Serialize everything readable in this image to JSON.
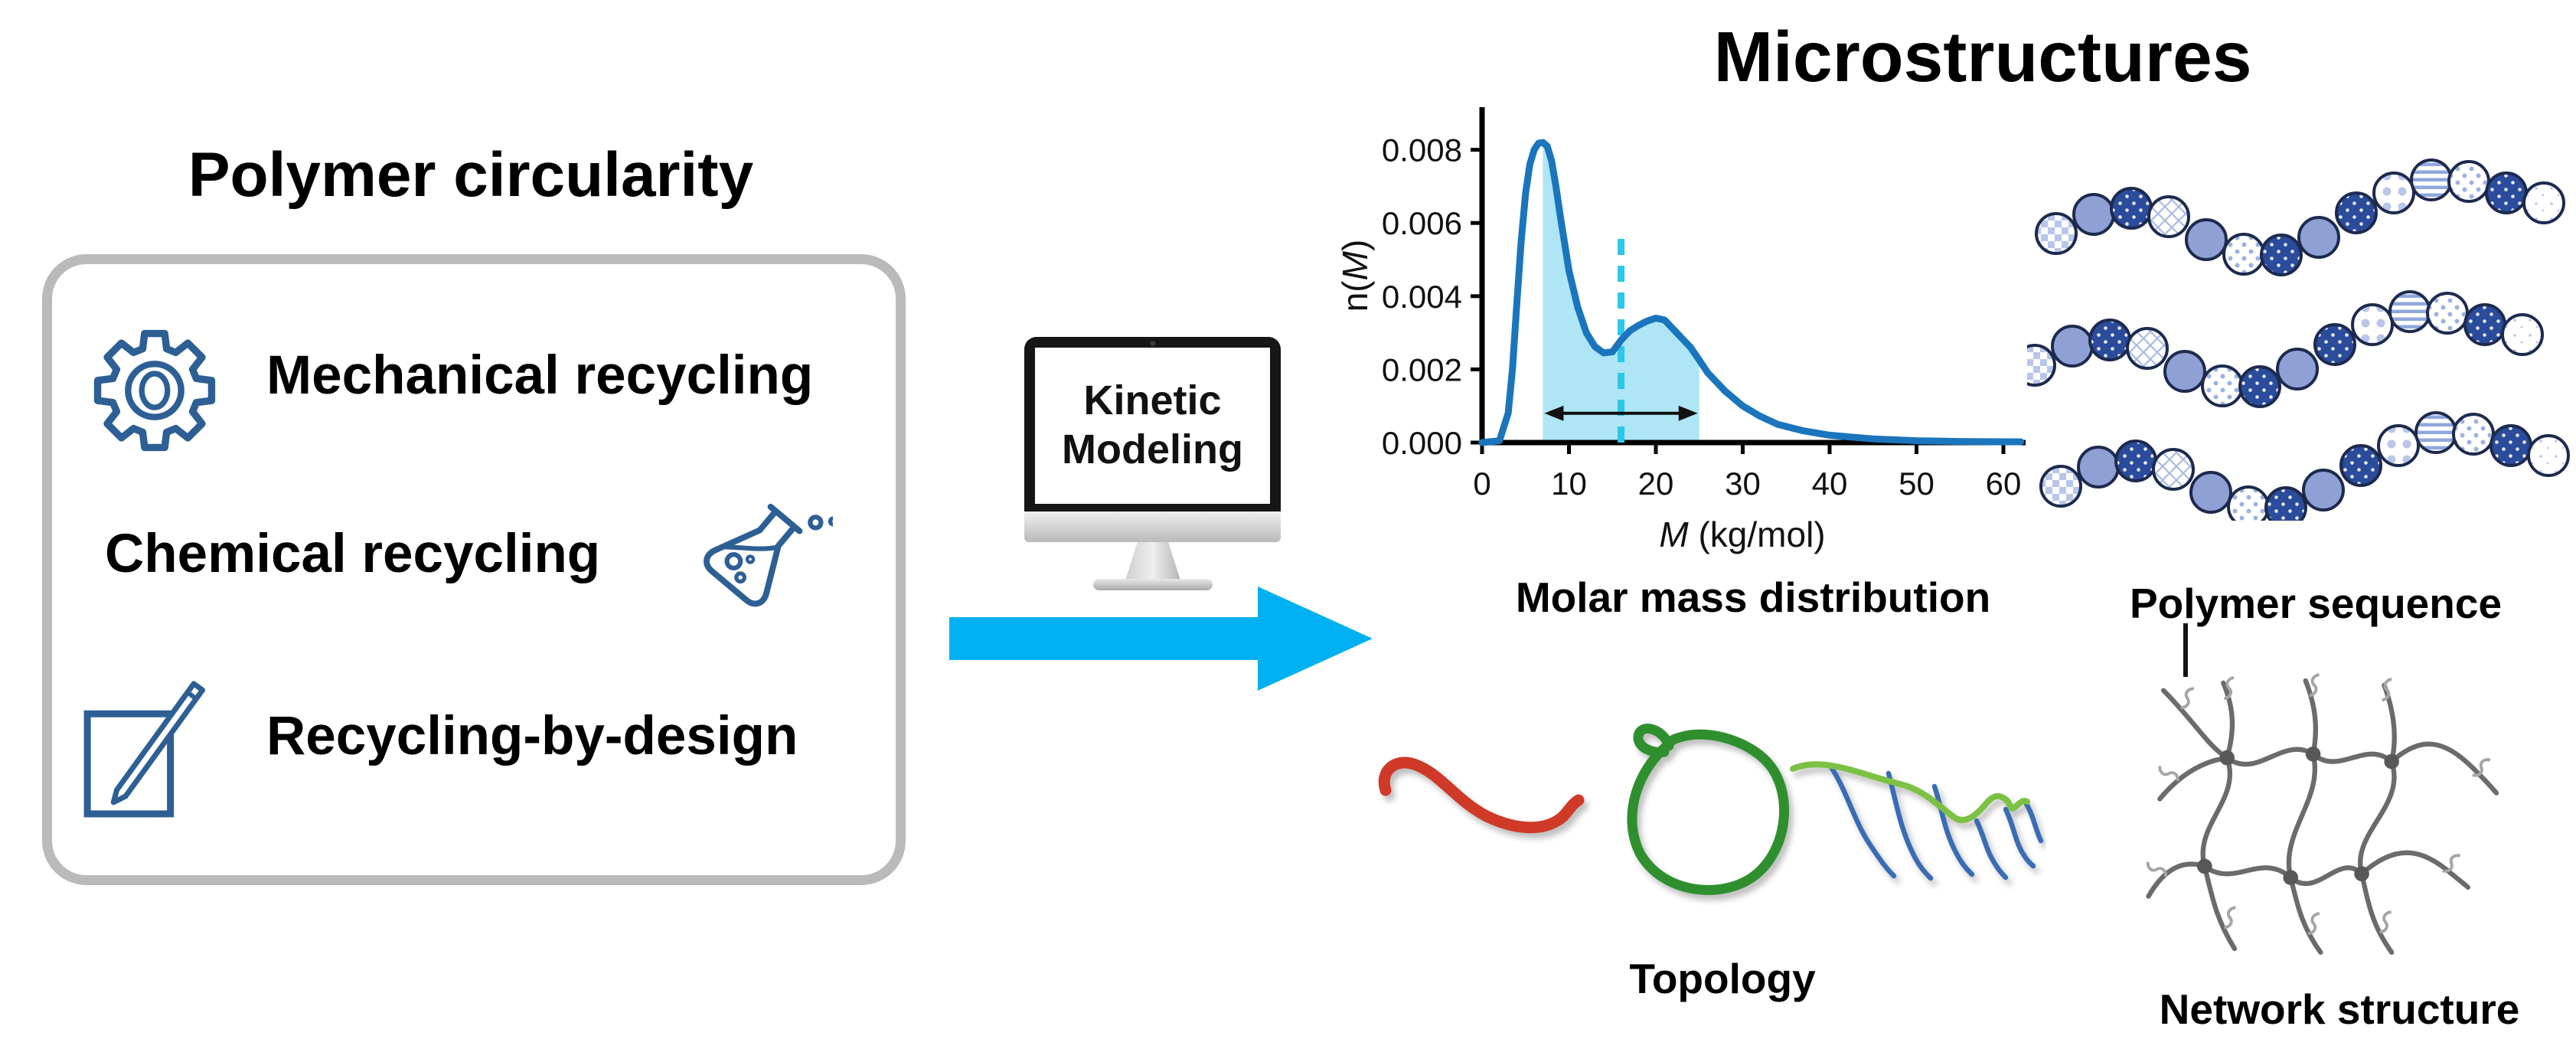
{
  "left_panel": {
    "title": "Polymer circularity",
    "border_color": "#bababa",
    "icon_color": "#2e5f94",
    "items": [
      {
        "icon": "gear-icon",
        "label": "Mechanical recycling"
      },
      {
        "icon": "flask-icon",
        "label": "Chemical recycling"
      },
      {
        "icon": "notepad-pencil-icon",
        "label": "Recycling-by-design"
      }
    ]
  },
  "center": {
    "monitor_screen_line1": "Kinetic",
    "monitor_screen_line2": "Modeling",
    "arrow_color": "#00b0f0"
  },
  "right_panel": {
    "title": "Microstructures",
    "captions": {
      "molar_mass": "Molar mass distribution",
      "sequence": "Polymer sequence",
      "topology": "Topology",
      "network": "Network structure"
    }
  },
  "chart_data": {
    "type": "area",
    "title": "Molar mass distribution",
    "xlabel": "M (kg/mol)",
    "xlabel_italic": "M",
    "xlabel_rest": " (kg/mol)",
    "ylabel": "n(M)",
    "ylabel_pre": "n(",
    "ylabel_italic": "M",
    "ylabel_post": ")",
    "xlim": [
      0,
      62
    ],
    "ylim": [
      0,
      0.0092
    ],
    "xticks": [
      0,
      10,
      20,
      30,
      40,
      50,
      60
    ],
    "yticks": [
      0.0,
      0.002,
      0.004,
      0.006,
      0.008
    ],
    "ytick_decimals": 3,
    "grid": false,
    "legend": "none",
    "curve_color": "#1b75bc",
    "series": [
      {
        "name": "n(M)",
        "points": [
          [
            0,
            0
          ],
          [
            2,
            5e-05
          ],
          [
            3,
            0.0008
          ],
          [
            3.5,
            0.002
          ],
          [
            4,
            0.0038
          ],
          [
            4.5,
            0.0055
          ],
          [
            5,
            0.0068
          ],
          [
            5.5,
            0.0076
          ],
          [
            6,
            0.008
          ],
          [
            6.5,
            0.00818
          ],
          [
            7,
            0.0082
          ],
          [
            7.5,
            0.0081
          ],
          [
            8,
            0.0077
          ],
          [
            8.5,
            0.007
          ],
          [
            9,
            0.0062
          ],
          [
            10,
            0.0047
          ],
          [
            11,
            0.0037
          ],
          [
            12,
            0.003
          ],
          [
            13,
            0.00262
          ],
          [
            14,
            0.00245
          ],
          [
            15,
            0.00248
          ],
          [
            16,
            0.0028
          ],
          [
            17,
            0.00305
          ],
          [
            18,
            0.0032
          ],
          [
            19,
            0.00332
          ],
          [
            20,
            0.0034
          ],
          [
            21,
            0.00335
          ],
          [
            22,
            0.0031
          ],
          [
            23,
            0.00285
          ],
          [
            24,
            0.0026
          ],
          [
            25,
            0.00225
          ],
          [
            26,
            0.0019
          ],
          [
            28,
            0.0014
          ],
          [
            30,
            0.001
          ],
          [
            32,
            0.00072
          ],
          [
            34,
            0.0005
          ],
          [
            37,
            0.00032
          ],
          [
            40,
            0.0002
          ],
          [
            45,
            0.0001
          ],
          [
            50,
            5e-05
          ],
          [
            55,
            3e-05
          ],
          [
            60,
            2e-05
          ],
          [
            62,
            2e-05
          ]
        ]
      }
    ],
    "shaded_region": {
      "x_start": 7,
      "x_end": 25,
      "fill": "#aee6f5"
    },
    "dashed_line": {
      "x": 16,
      "y_top": 0.0057,
      "color": "#2ec6ea"
    },
    "width_arrow": {
      "x_start": 7,
      "x_end": 25,
      "y": 0.0008,
      "color": "#111111"
    }
  },
  "illustrations": {
    "sequence_colors": {
      "solid": "#8fa0d4",
      "dark": "#2b4b9b",
      "outline": "#1d2a4e"
    },
    "topology_colors": {
      "linear": "#cf3a28",
      "ring": "#2f8f2f",
      "backbone": "#7cc144",
      "branches": "#3a6cb4"
    },
    "network_color": "#6b6b6b"
  }
}
